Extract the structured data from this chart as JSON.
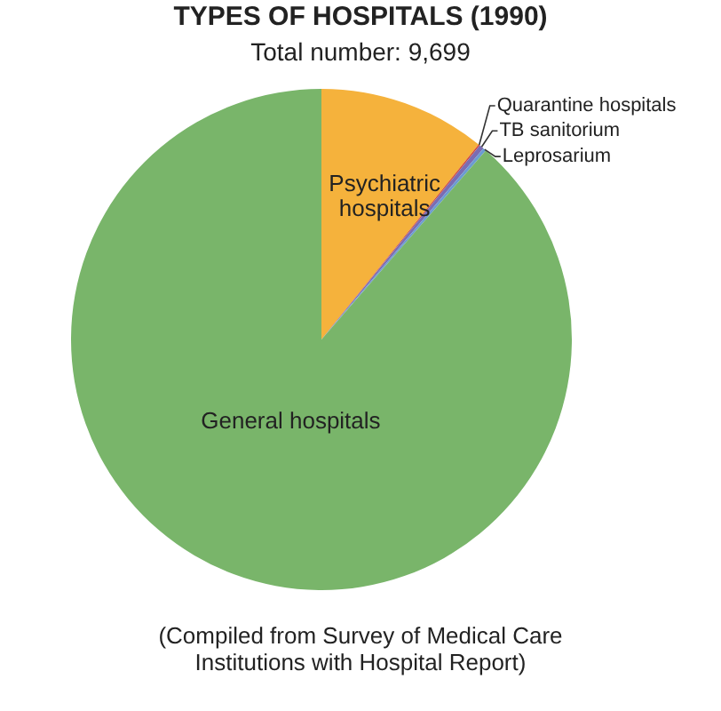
{
  "chart_data": {
    "type": "pie",
    "title": "TYPES OF HOSPITALS (1990)",
    "subtitle": "Total number: 9,699",
    "categories": [
      "Psychiatric hospitals",
      "Quarantine hospitals",
      "TB sanitorium",
      "Leprosarium",
      "General hospitals"
    ],
    "values": [
      10.8,
      0.1,
      0.3,
      0.2,
      88.6
    ],
    "colors": [
      "#f5b23c",
      "#d24a3a",
      "#7b6cb2",
      "#6b9bd2",
      "#79b56a"
    ],
    "legend": false,
    "annotations": [
      "(Compiled from Survey of Medical Care Institutions with Hospital Report)"
    ]
  }
}
